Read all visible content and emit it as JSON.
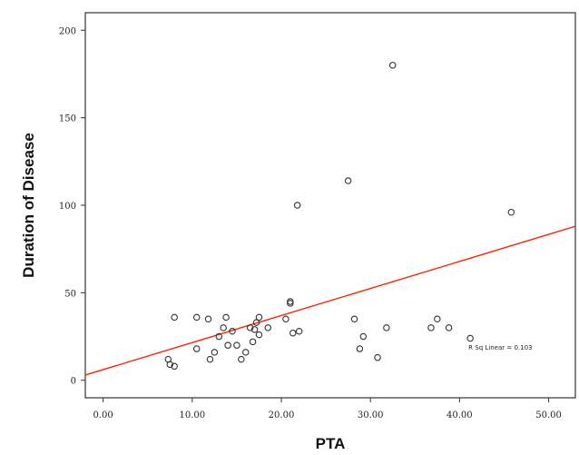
{
  "chart_data": {
    "type": "scatter",
    "xlabel": "PTA",
    "ylabel": "Duration of Disease",
    "xlim": [
      -2,
      53
    ],
    "ylim": [
      -10,
      210
    ],
    "xticks": [
      0,
      10,
      20,
      30,
      40,
      50
    ],
    "xtick_labels": [
      "0.00",
      "10.00",
      "20.00",
      "30.00",
      "40.00",
      "50.00"
    ],
    "yticks": [
      0,
      50,
      100,
      150,
      200
    ],
    "ytick_labels": [
      "0",
      "50",
      "100",
      "150",
      "200"
    ],
    "grid": false,
    "legend": "none",
    "annotation": "R Sq Linear = 0.103",
    "colors": {
      "points": "#333333",
      "fit_line": "#ff2200",
      "axes": "#333333"
    },
    "fit_line": {
      "x": [
        -2,
        53
      ],
      "y": [
        3,
        88
      ]
    },
    "points": [
      {
        "x": 7.3,
        "y": 12
      },
      {
        "x": 7.5,
        "y": 9
      },
      {
        "x": 8.0,
        "y": 8
      },
      {
        "x": 8.0,
        "y": 36
      },
      {
        "x": 10.5,
        "y": 18
      },
      {
        "x": 10.5,
        "y": 36
      },
      {
        "x": 11.8,
        "y": 35
      },
      {
        "x": 12.0,
        "y": 12
      },
      {
        "x": 12.5,
        "y": 16
      },
      {
        "x": 13.0,
        "y": 25
      },
      {
        "x": 13.5,
        "y": 30
      },
      {
        "x": 13.8,
        "y": 36
      },
      {
        "x": 14.0,
        "y": 20
      },
      {
        "x": 14.5,
        "y": 28
      },
      {
        "x": 15.0,
        "y": 20
      },
      {
        "x": 15.5,
        "y": 12
      },
      {
        "x": 16.0,
        "y": 16
      },
      {
        "x": 16.5,
        "y": 30
      },
      {
        "x": 16.8,
        "y": 22
      },
      {
        "x": 17.0,
        "y": 29
      },
      {
        "x": 17.2,
        "y": 33
      },
      {
        "x": 17.5,
        "y": 36
      },
      {
        "x": 17.5,
        "y": 26
      },
      {
        "x": 18.5,
        "y": 30
      },
      {
        "x": 20.5,
        "y": 35
      },
      {
        "x": 21.0,
        "y": 44
      },
      {
        "x": 21.0,
        "y": 45
      },
      {
        "x": 21.3,
        "y": 27
      },
      {
        "x": 21.8,
        "y": 100
      },
      {
        "x": 22.0,
        "y": 28
      },
      {
        "x": 27.5,
        "y": 114
      },
      {
        "x": 28.2,
        "y": 35
      },
      {
        "x": 28.8,
        "y": 18
      },
      {
        "x": 29.2,
        "y": 25
      },
      {
        "x": 30.8,
        "y": 13
      },
      {
        "x": 31.8,
        "y": 30
      },
      {
        "x": 32.5,
        "y": 180
      },
      {
        "x": 36.8,
        "y": 30
      },
      {
        "x": 37.5,
        "y": 35
      },
      {
        "x": 38.8,
        "y": 30
      },
      {
        "x": 41.2,
        "y": 24
      },
      {
        "x": 45.8,
        "y": 96
      }
    ]
  }
}
